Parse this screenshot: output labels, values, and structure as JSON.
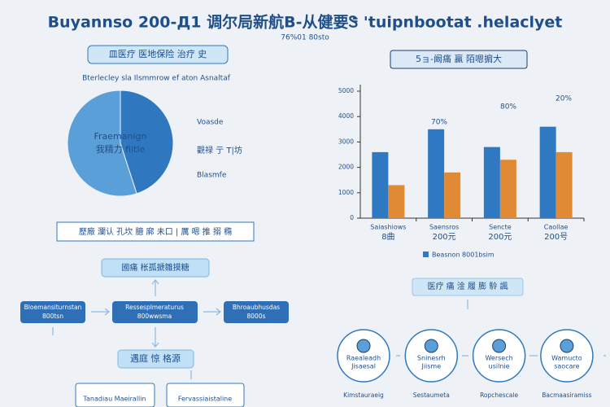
{
  "header": {
    "title": "Buyannso 200-Д1 调尔局新航B-从健要Ꮥ 'tuipnbootat .helaclyet",
    "subtitle": "76%01 80sto"
  },
  "pie_section": {
    "heading": "皿医疗 医地保险 治疗 史",
    "caption": "Bterlecley sla Ilsmmrow ef aton Asnaltaf",
    "center_label": [
      "Fraemanign",
      "我精力 fiitle"
    ],
    "labels": [
      "Voasde",
      "觀禄 亍 T|坊",
      "Blasmfe"
    ]
  },
  "bar_section": {
    "heading": "5ョ-阚痛 贏 陌嗯掮大"
  },
  "chart_data": [
    {
      "type": "pie",
      "values": [
        45,
        55
      ],
      "colors": [
        "#2f78bf",
        "#5b9fd9"
      ]
    },
    {
      "type": "bar",
      "categories": [
        [
          "Saiashiows",
          "8曲"
        ],
        [
          "Saensros",
          "200元"
        ],
        [
          "Sencte",
          "200元"
        ],
        [
          "Caollae",
          "200号"
        ]
      ],
      "series": [
        {
          "name": "Beasnon 8001bsim",
          "color": "#2f78c2",
          "values": [
            2600,
            3500,
            2800,
            3600
          ]
        },
        {
          "color": "#e08a35",
          "values": [
            1300,
            1800,
            2300,
            2600
          ]
        }
      ],
      "ylim": [
        0,
        5000
      ],
      "yticks": [
        0,
        1000,
        2000,
        3000,
        4000,
        5000
      ],
      "annotations": [
        "70%",
        "80%",
        "20%"
      ]
    }
  ],
  "flow": {
    "banner": "歷廠 瀾认 孔坎 臆 廓 未口 | 厲 嗯 推 搦 橢",
    "top": "國痛 枨孤搋雛摸糖",
    "left": [
      "Bloemansiturnstan",
      "800tsn"
    ],
    "center": [
      "Ressesplmeraturus",
      "800wwsma"
    ],
    "right": [
      "Bhroaubhusdas",
      "8000s"
    ],
    "bottom": "遇庭 惊 格源",
    "outputs": [
      "Tanadiau Maeirallin",
      "Fervassiaistaline"
    ]
  },
  "process": {
    "heading": "医疗 痛 淦 履 膨 駖 諷",
    "steps": [
      {
        "label": [
          "Raealeadh",
          "Jisaesal"
        ],
        "caption": "Kimstauraeig"
      },
      {
        "label": [
          "Sninesrh",
          "Jiisme"
        ],
        "caption": "Sestaumeta"
      },
      {
        "label": [
          "Wersech",
          "usilnie"
        ],
        "caption": "Ropchescale"
      },
      {
        "label": [
          "Wamucto",
          "saocare"
        ],
        "caption": "Bacmaasiramiss"
      }
    ]
  }
}
